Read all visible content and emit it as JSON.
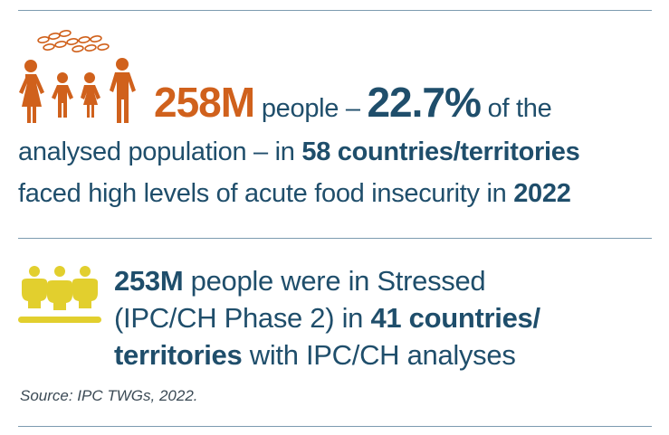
{
  "colors": {
    "orange": "#d0611c",
    "navy": "#1f4e6b",
    "yellow": "#e2cf2e",
    "rule": "#7d9bb0"
  },
  "icons": {
    "family": "family-with-grain-icon",
    "group": "group-of-people-icon"
  },
  "stat1": {
    "number": "258M",
    "text_a": " people – ",
    "percent": "22.7%",
    "text_b": " of the",
    "line2_a": "analysed population – in ",
    "line2_b": "58 countries/territories",
    "line3_a": "faced high levels of acute food insecurity in ",
    "line3_b": "2022"
  },
  "stat2": {
    "number": "253M",
    "line1_rest": " people were in Stressed",
    "line2_a": "(IPC/CH Phase 2) in ",
    "line2_b": "41 countries/",
    "line3_a": "territories",
    "line3_b": " with IPC/CH analyses"
  },
  "source": "Source: IPC TWGs, 2022."
}
